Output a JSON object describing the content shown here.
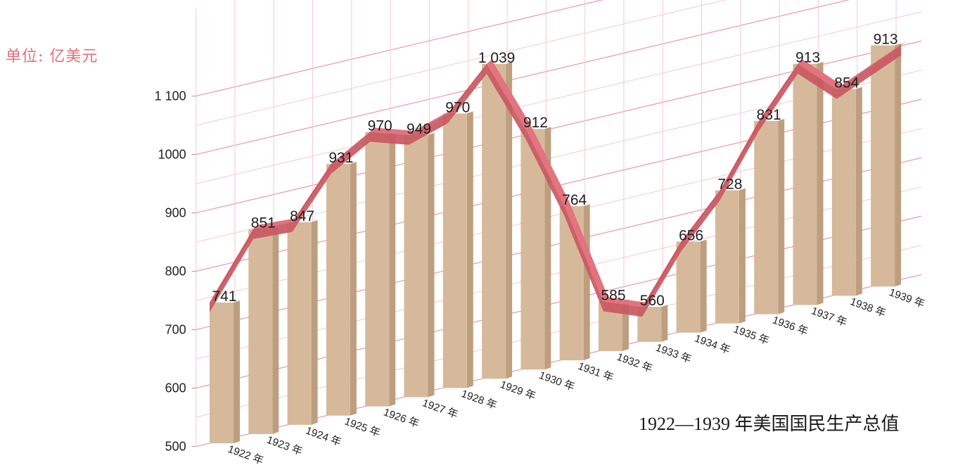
{
  "unit_label": "单位: 亿美元",
  "title": "1922—1939 年美国国民生产总值",
  "colors": {
    "bar_front": "#d6b99b",
    "bar_side": "#bd9e7e",
    "ribbon_top": "#e2737f",
    "ribbon_front": "#c95862",
    "grid": "#f4c8cf",
    "grid_strong": "#ea99a6",
    "unit_label": "#e0707c"
  },
  "chart_data": {
    "type": "bar",
    "title": "1922—1939 年美国国民生产总值",
    "ylabel": "单位: 亿美元",
    "xlabel": "",
    "ylim": [
      500,
      1100
    ],
    "yticks": [
      500,
      600,
      700,
      800,
      900,
      1000,
      1100
    ],
    "ytick_labels": [
      "500",
      "600",
      "700",
      "800",
      "900",
      "1000",
      "1 100"
    ],
    "grid": true,
    "categories": [
      "1922 年",
      "1923 年",
      "1924 年",
      "1925 年",
      "1926 年",
      "1927 年",
      "1928 年",
      "1929 年",
      "1930 年",
      "1931 年",
      "1932 年",
      "1933 年",
      "1934 年",
      "1935 年",
      "1936 年",
      "1937 年",
      "1938 年",
      "1939 年"
    ],
    "values": [
      741,
      851,
      847,
      931,
      970,
      949,
      970,
      1039,
      912,
      764,
      585,
      560,
      656,
      728,
      831,
      913,
      854,
      913
    ],
    "value_labels": [
      "741",
      "851",
      "847",
      "931",
      "970",
      "949",
      "970",
      "1 039",
      "912",
      "764",
      "585",
      "560",
      "656",
      "728",
      "831",
      "913",
      "854",
      "913"
    ]
  }
}
